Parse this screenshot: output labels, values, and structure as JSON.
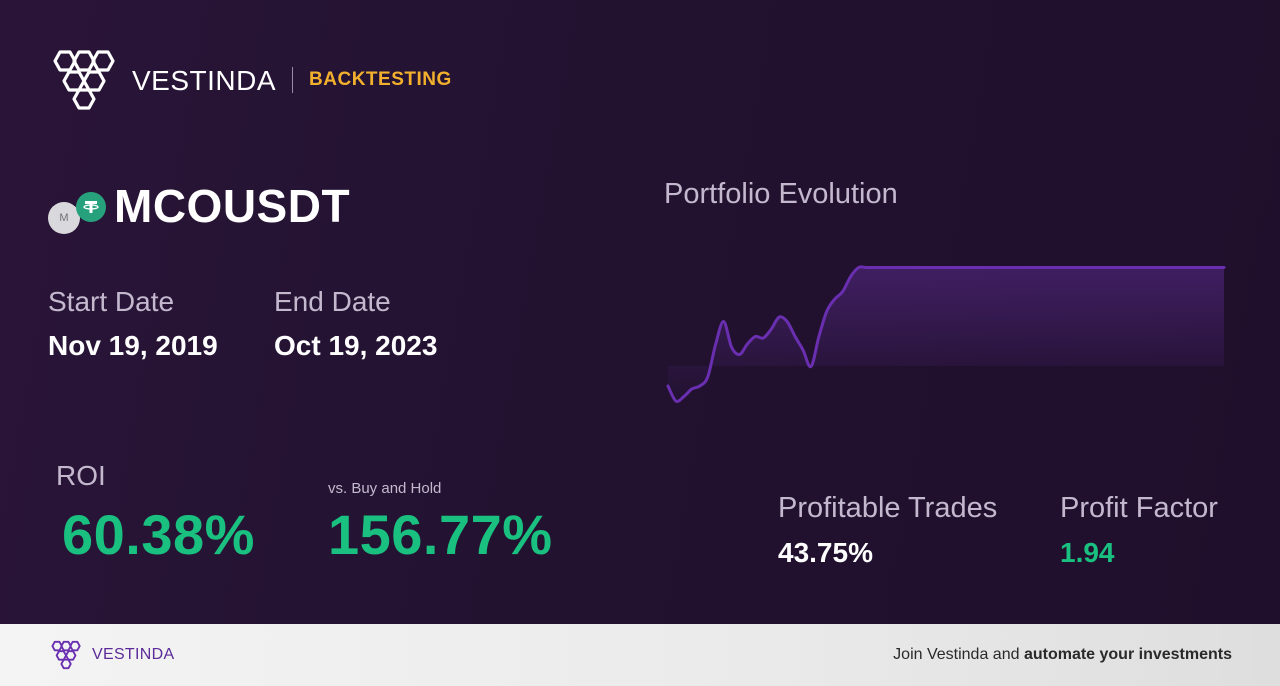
{
  "brand": {
    "name": "VESTINDA",
    "tag": "BACKTESTING"
  },
  "pair": {
    "name": "MCOUSDT",
    "coin_base_letter": "M",
    "coin_base_icon": "mco-coin-icon",
    "coin_quote_icon": "tether-icon"
  },
  "dates": {
    "start_label": "Start Date",
    "start_value": "Nov 19, 2019",
    "end_label": "End Date",
    "end_value": "Oct 19, 2023"
  },
  "roi": {
    "label": "ROI",
    "value": "60.38%",
    "bh_label": "vs. Buy and Hold",
    "bh_value": "156.77%"
  },
  "portfolio": {
    "title": "Portfolio Evolution"
  },
  "stats": {
    "profitable_label": "Profitable Trades",
    "profitable_value": "43.75%",
    "factor_label": "Profit Factor",
    "factor_value": "1.94"
  },
  "footer": {
    "name": "VESTINDA",
    "cta_prefix": "Join Vestinda and ",
    "cta_bold": "automate your investments"
  },
  "colors": {
    "accent": "#f2b02d",
    "positive": "#19c080",
    "line": "#6a2fb0",
    "background": "#241332"
  },
  "chart_data": {
    "type": "line",
    "title": "Portfolio Evolution",
    "xlabel": "",
    "ylabel": "",
    "grid": false,
    "legend": "none",
    "x": [
      0,
      1,
      2,
      3,
      4,
      5,
      6,
      7,
      8,
      9,
      10,
      11,
      12,
      13,
      14,
      15,
      16,
      17,
      18,
      19,
      20,
      21,
      22,
      23,
      24,
      25,
      26,
      27,
      28,
      29,
      30,
      31,
      32,
      33,
      34,
      35,
      36,
      37,
      38,
      39,
      40,
      41,
      42,
      43,
      44,
      45,
      46,
      47,
      48,
      49,
      50,
      51,
      52,
      53,
      54,
      55,
      56,
      57,
      58,
      59,
      60,
      61,
      62,
      63,
      64,
      65,
      66,
      67,
      68,
      69,
      70
    ],
    "values": [
      0.12,
      0.02,
      0.05,
      0.1,
      0.12,
      0.18,
      0.4,
      0.55,
      0.38,
      0.33,
      0.4,
      0.45,
      0.44,
      0.5,
      0.58,
      0.55,
      0.45,
      0.36,
      0.25,
      0.45,
      0.62,
      0.7,
      0.75,
      0.85,
      0.91,
      0.91,
      0.91,
      0.91,
      0.91,
      0.91,
      0.91,
      0.91,
      0.91,
      0.91,
      0.91,
      0.91,
      0.91,
      0.91,
      0.91,
      0.91,
      0.91,
      0.91,
      0.91,
      0.91,
      0.91,
      0.91,
      0.91,
      0.91,
      0.91,
      0.91,
      0.91,
      0.91,
      0.91,
      0.91,
      0.91,
      0.91,
      0.91,
      0.91,
      0.91,
      0.91,
      0.91,
      0.91,
      0.91,
      0.91,
      0.91,
      0.91,
      0.91,
      0.91,
      0.91,
      0.91,
      0.91
    ],
    "ylim": [
      0,
      1
    ]
  }
}
